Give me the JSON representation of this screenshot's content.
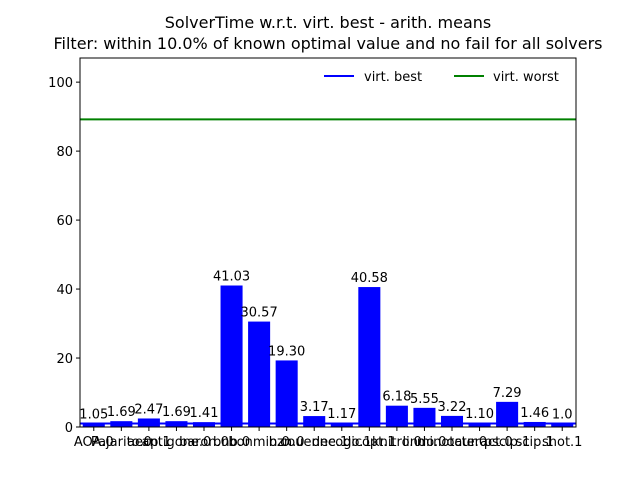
{
  "chart_data": {
    "type": "bar",
    "title": "SolverTime w.r.t. virt. best - arith. means",
    "subtitle": "Filter: within 10.0% of known optimal value and no fail for all solvers",
    "xlabel": "",
    "ylabel": "",
    "ylim": [
      0,
      107
    ],
    "yticks": [
      0,
      20,
      40,
      60,
      80,
      100
    ],
    "categories": [
      "AOA.0",
      "Pajarito.0",
      "aecp.1",
      "antigone.0",
      "baron.0",
      "bnb.0",
      "bonmin.0",
      "bzn.0",
      "couenne.1",
      "decogo.1",
      "dicopt.1",
      "knitro.0",
      "lindo.0",
      "minotaur.0",
      "octeract.0",
      "pscip.1",
      "scip.1",
      "shot.1"
    ],
    "values": [
      1.05,
      1.69,
      2.47,
      1.69,
      1.41,
      41.03,
      30.57,
      19.3,
      3.17,
      1.17,
      40.58,
      6.18,
      5.55,
      3.22,
      1.1,
      7.29,
      1.46,
      1.0
    ],
    "data_labels": [
      "1.05",
      "1.69",
      "2.47",
      "1.69",
      "1.41",
      "41.03",
      "30.57",
      "19.30",
      "3.17",
      "1.17",
      "40.58",
      "6.18",
      "5.55",
      "3.22",
      "1.10",
      "7.29",
      "1.46",
      "1.0"
    ],
    "bar_color": "#0000ff",
    "reference_lines": [
      {
        "name": "virt. best",
        "value": 1.0,
        "color": "#0000ff"
      },
      {
        "name": "virt. worst",
        "value": 89.2,
        "color": "#008000"
      }
    ],
    "legend_position": "top-right",
    "grid": false
  }
}
